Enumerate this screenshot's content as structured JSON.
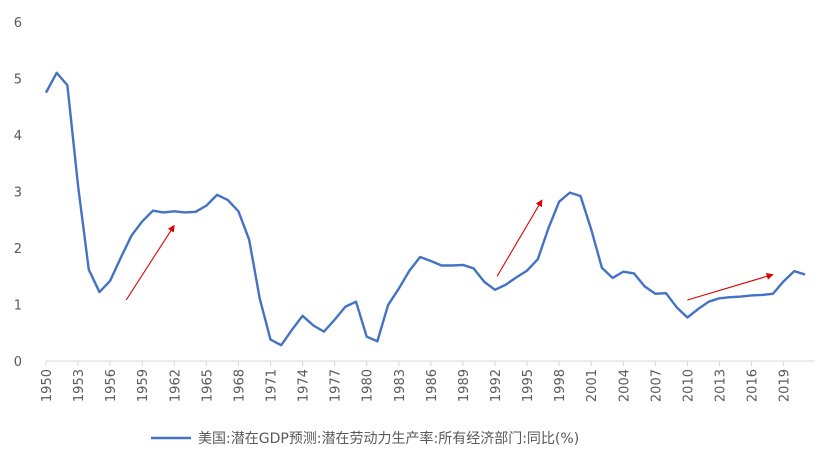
{
  "colors": {
    "series": "#4472C4",
    "arrow": "#E00000",
    "axis": "#D9D9D9",
    "text": "#595959"
  },
  "chart_data": {
    "type": "line",
    "title": "",
    "xlabel": "",
    "ylabel": "",
    "ylim": [
      0,
      6
    ],
    "yticks": [
      0,
      1,
      2,
      3,
      4,
      5,
      6
    ],
    "xlim": [
      1950,
      2021
    ],
    "xticks": [
      1950,
      1953,
      1956,
      1959,
      1962,
      1965,
      1968,
      1971,
      1974,
      1977,
      1980,
      1983,
      1986,
      1989,
      1992,
      1995,
      1998,
      2001,
      2004,
      2007,
      2010,
      2013,
      2016,
      2019
    ],
    "grid": false,
    "legend": "bottom",
    "series": [
      {
        "name": "美国:潜在GDP预测:潜在劳动力生产率:所有经济部门:同比(%)",
        "x": [
          1950,
          1951,
          1952,
          1953,
          1954,
          1955,
          1956,
          1957,
          1958,
          1959,
          1960,
          1961,
          1962,
          1963,
          1964,
          1965,
          1966,
          1967,
          1968,
          1969,
          1970,
          1971,
          1972,
          1973,
          1974,
          1975,
          1976,
          1977,
          1978,
          1979,
          1980,
          1981,
          1982,
          1983,
          1984,
          1985,
          1986,
          1987,
          1988,
          1989,
          1990,
          1991,
          1992,
          1993,
          1994,
          1995,
          1996,
          1997,
          1998,
          1999,
          2000,
          2001,
          2002,
          2003,
          2004,
          2005,
          2006,
          2007,
          2008,
          2009,
          2010,
          2011,
          2012,
          2013,
          2014,
          2015,
          2016,
          2017,
          2018,
          2019,
          2020,
          2021
        ],
        "y": [
          4.75,
          5.1,
          4.88,
          3.1,
          1.62,
          1.22,
          1.42,
          1.83,
          2.22,
          2.47,
          2.66,
          2.63,
          2.65,
          2.63,
          2.64,
          2.75,
          2.94,
          2.85,
          2.65,
          2.15,
          1.1,
          0.38,
          0.28,
          0.55,
          0.8,
          0.63,
          0.52,
          0.73,
          0.96,
          1.05,
          0.43,
          0.35,
          0.99,
          1.28,
          1.6,
          1.84,
          1.77,
          1.69,
          1.69,
          1.7,
          1.64,
          1.4,
          1.26,
          1.35,
          1.48,
          1.6,
          1.8,
          2.35,
          2.82,
          2.98,
          2.92,
          2.33,
          1.65,
          1.47,
          1.58,
          1.55,
          1.32,
          1.19,
          1.2,
          0.95,
          0.77,
          0.92,
          1.05,
          1.11,
          1.13,
          1.14,
          1.16,
          1.17,
          1.19,
          1.41,
          1.59,
          1.53
        ]
      }
    ],
    "annotations": [
      {
        "type": "arrow",
        "from": [
          1957.5,
          1.08
        ],
        "to": [
          1962,
          2.4
        ]
      },
      {
        "type": "arrow",
        "from": [
          1992.2,
          1.5
        ],
        "to": [
          1996.4,
          2.85
        ]
      },
      {
        "type": "arrow",
        "from": [
          2010,
          1.08
        ],
        "to": [
          2018,
          1.53
        ]
      }
    ]
  }
}
